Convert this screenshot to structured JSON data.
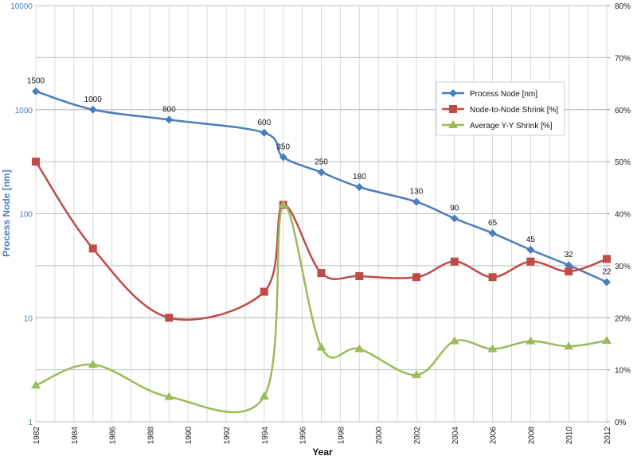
{
  "chart_data": {
    "type": "line",
    "title": "",
    "xlabel": "Year",
    "ylabel_left": "Process Node [nm]",
    "ylabel_right": "",
    "x_ticks": [
      "1982",
      "1984",
      "1986",
      "1988",
      "1990",
      "1992",
      "1994",
      "1996",
      "1998",
      "2000",
      "2002",
      "2004",
      "2006",
      "2008",
      "2010",
      "2012"
    ],
    "xlim": [
      1982,
      2012
    ],
    "y_left_scale": "log",
    "y_left_ticks": [
      "1",
      "10",
      "100",
      "1000",
      "10000"
    ],
    "ylim_left": [
      1,
      10000
    ],
    "y_right_ticks": [
      "0%",
      "10%",
      "20%",
      "30%",
      "40%",
      "50%",
      "60%",
      "70%",
      "80%"
    ],
    "ylim_right": [
      0,
      80
    ],
    "grid": true,
    "legend_position": "top-right",
    "series": [
      {
        "name": "Process Node [nm]",
        "axis": "left",
        "color": "#4a7ebb",
        "marker": "diamond",
        "x": [
          1982,
          1985,
          1989,
          1994,
          1995,
          1997,
          1999,
          2002,
          2004,
          2006,
          2008,
          2010,
          2012
        ],
        "y": [
          1500,
          1000,
          800,
          600,
          350,
          250,
          180,
          130,
          90,
          65,
          45,
          32,
          22
        ],
        "labels": [
          "1500",
          "1000",
          "800",
          "600",
          "350",
          "250",
          "180",
          "130",
          "90",
          "65",
          "45",
          "32",
          "22"
        ]
      },
      {
        "name": "Node-to-Node Shrink [%]",
        "axis": "right",
        "color": "#be4b48",
        "marker": "square",
        "x": [
          1982,
          1985,
          1989,
          1994,
          1995,
          1997,
          1999,
          2002,
          2004,
          2006,
          2008,
          2010,
          2012
        ],
        "y": [
          50,
          33.3,
          20,
          25,
          41.7,
          28.6,
          28,
          27.8,
          30.8,
          27.8,
          30.8,
          28.9,
          31.3
        ]
      },
      {
        "name": "Average Y-Y Shrink  [%]",
        "axis": "right",
        "color": "#9bbb59",
        "marker": "triangle",
        "x": [
          1982,
          1985,
          1989,
          1994,
          1995,
          1997,
          1999,
          2002,
          2004,
          2006,
          2008,
          2010,
          2012
        ],
        "y": [
          7,
          11,
          4.8,
          4.9,
          41.7,
          14.3,
          14,
          9,
          15.5,
          14,
          15.5,
          14.5,
          15.6
        ]
      }
    ]
  }
}
